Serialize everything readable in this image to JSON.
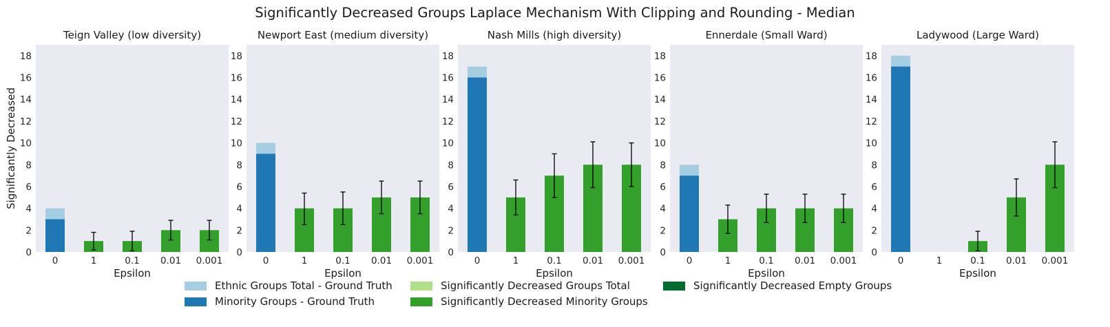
{
  "figure": {
    "title": "Significantly Decreased Groups Laplace Mechanism With Clipping and Rounding - Median"
  },
  "colors": {
    "ethnic_total_gt": "#a6cee3",
    "minority_gt": "#1f78b4",
    "sig_dec_total": "#b2df8a",
    "sig_dec_minority": "#33a02c",
    "sig_dec_empty": "#006d2c",
    "axes_bg": "#eaeaf2",
    "errorbar": "#000000"
  },
  "legend": [
    {
      "label": "Ethnic Groups Total - Ground Truth",
      "color_key": "ethnic_total_gt"
    },
    {
      "label": "Minority Groups - Ground Truth",
      "color_key": "minority_gt"
    },
    {
      "label": "Significantly Decreased Groups Total",
      "color_key": "sig_dec_total"
    },
    {
      "label": "Significantly Decreased Minority Groups",
      "color_key": "sig_dec_minority"
    },
    {
      "label": "Significantly Decreased Empty Groups",
      "color_key": "sig_dec_empty"
    }
  ],
  "chart_data": [
    {
      "type": "bar",
      "title": "Teign Valley (low diversity)",
      "xlabel": "Epsilon",
      "ylabel": "Significantly Decreased",
      "categories": [
        "0",
        "1",
        "0.1",
        "0.01",
        "0.001"
      ],
      "ylim": [
        0,
        19
      ],
      "yticks": [
        0,
        2,
        4,
        6,
        8,
        10,
        12,
        14,
        16,
        18
      ],
      "ground_truth": {
        "ethnic_total": 4,
        "minority": 3
      },
      "sig_dec_minority": [
        null,
        1,
        1,
        2,
        2
      ],
      "error_low": [
        null,
        0.2,
        0.1,
        1.1,
        1.1
      ],
      "error_high": [
        null,
        1.8,
        1.9,
        2.9,
        2.9
      ]
    },
    {
      "type": "bar",
      "title": "Newport East (medium diversity)",
      "xlabel": "Epsilon",
      "ylabel": "",
      "categories": [
        "0",
        "1",
        "0.1",
        "0.01",
        "0.001"
      ],
      "ylim": [
        0,
        19
      ],
      "yticks": [
        0,
        2,
        4,
        6,
        8,
        10,
        12,
        14,
        16,
        18
      ],
      "ground_truth": {
        "ethnic_total": 10,
        "minority": 9
      },
      "sig_dec_minority": [
        null,
        4,
        4,
        5,
        5
      ],
      "error_low": [
        null,
        2.5,
        2.5,
        3.5,
        3.5
      ],
      "error_high": [
        null,
        5.4,
        5.5,
        6.5,
        6.5
      ]
    },
    {
      "type": "bar",
      "title": "Nash Mills (high diversity)",
      "xlabel": "Epsilon",
      "ylabel": "",
      "categories": [
        "0",
        "1",
        "0.1",
        "0.01",
        "0.001"
      ],
      "ylim": [
        0,
        19
      ],
      "yticks": [
        0,
        2,
        4,
        6,
        8,
        10,
        12,
        14,
        16,
        18
      ],
      "ground_truth": {
        "ethnic_total": 17,
        "minority": 16
      },
      "sig_dec_minority": [
        null,
        5,
        7,
        8,
        8
      ],
      "error_low": [
        null,
        3.4,
        5.0,
        5.9,
        6.0
      ],
      "error_high": [
        null,
        6.6,
        9.0,
        10.1,
        10.0
      ]
    },
    {
      "type": "bar",
      "title": "Ennerdale (Small Ward)",
      "xlabel": "Epsilon",
      "ylabel": "",
      "categories": [
        "0",
        "1",
        "0.1",
        "0.01",
        "0.001"
      ],
      "ylim": [
        0,
        19
      ],
      "yticks": [
        0,
        2,
        4,
        6,
        8,
        10,
        12,
        14,
        16,
        18
      ],
      "ground_truth": {
        "ethnic_total": 8,
        "minority": 7
      },
      "sig_dec_minority": [
        null,
        3,
        4,
        4,
        4
      ],
      "error_low": [
        null,
        1.7,
        2.7,
        2.7,
        2.7
      ],
      "error_high": [
        null,
        4.3,
        5.3,
        5.3,
        5.3
      ]
    },
    {
      "type": "bar",
      "title": "Ladywood (Large Ward)",
      "xlabel": "Epsilon",
      "ylabel": "",
      "categories": [
        "0",
        "1",
        "0.1",
        "0.01",
        "0.001"
      ],
      "ylim": [
        0,
        19
      ],
      "yticks": [
        0,
        2,
        4,
        6,
        8,
        10,
        12,
        14,
        16,
        18
      ],
      "ground_truth": {
        "ethnic_total": 18,
        "minority": 17
      },
      "sig_dec_minority": [
        null,
        null,
        1,
        5,
        8
      ],
      "error_low": [
        null,
        null,
        0.1,
        3.3,
        5.9
      ],
      "error_high": [
        null,
        null,
        1.9,
        6.7,
        10.1
      ]
    }
  ]
}
